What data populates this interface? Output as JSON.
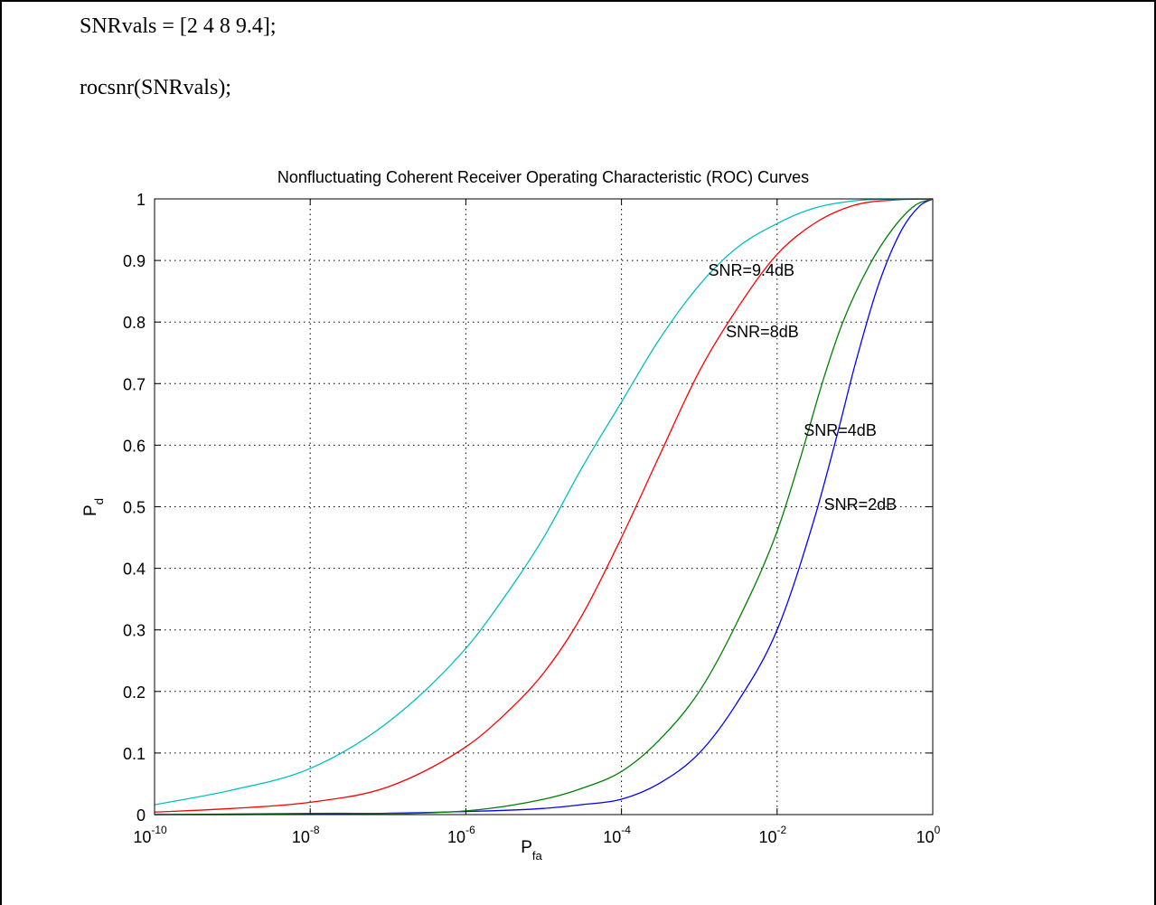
{
  "code": {
    "line1": "SNRvals = [2 4 8 9.4];",
    "line2": "rocsnr(SNRvals);"
  },
  "chart_data": {
    "type": "line",
    "title": "Nonfluctuating Coherent Receiver Operating Characteristic (ROC) Curves",
    "xlabel": {
      "main": "P",
      "sub": "fa"
    },
    "ylabel": {
      "main": "P",
      "sub": "d"
    },
    "xscale": "log",
    "xlim": [
      1e-10,
      1
    ],
    "ylim": [
      0,
      1
    ],
    "grid": true,
    "xticks": [
      {
        "value": 1e-10,
        "base": "10",
        "exp": "-10"
      },
      {
        "value": 1e-08,
        "base": "10",
        "exp": "-8"
      },
      {
        "value": 1e-06,
        "base": "10",
        "exp": "-6"
      },
      {
        "value": 0.0001,
        "base": "10",
        "exp": "-4"
      },
      {
        "value": 0.01,
        "base": "10",
        "exp": "-2"
      },
      {
        "value": 1,
        "base": "10",
        "exp": "0"
      }
    ],
    "yticks": [
      {
        "value": 0,
        "label": "0"
      },
      {
        "value": 0.1,
        "label": "0.1"
      },
      {
        "value": 0.2,
        "label": "0.2"
      },
      {
        "value": 0.3,
        "label": "0.3"
      },
      {
        "value": 0.4,
        "label": "0.4"
      },
      {
        "value": 0.5,
        "label": "0.5"
      },
      {
        "value": 0.6,
        "label": "0.6"
      },
      {
        "value": 0.7,
        "label": "0.7"
      },
      {
        "value": 0.8,
        "label": "0.8"
      },
      {
        "value": 0.9,
        "label": "0.9"
      },
      {
        "value": 1,
        "label": "1"
      }
    ],
    "series": [
      {
        "label": "SNR=2dB",
        "color": "#0000ff",
        "x": [
          1e-10,
          1e-08,
          1e-06,
          1e-05,
          3e-05,
          0.0001,
          0.0003,
          0.001,
          0.003,
          0.01,
          0.03,
          0.06,
          0.1,
          0.2,
          0.4,
          0.7,
          1
        ],
        "y": [
          0.0,
          0.0005,
          0.005,
          0.01,
          0.016,
          0.025,
          0.05,
          0.1,
          0.18,
          0.3,
          0.48,
          0.62,
          0.73,
          0.86,
          0.95,
          0.99,
          1.0
        ]
      },
      {
        "label": "SNR=4dB",
        "color": "#008000",
        "x": [
          1e-10,
          1e-08,
          1e-06,
          1e-05,
          3e-05,
          0.0001,
          0.0003,
          0.001,
          0.003,
          0.01,
          0.02,
          0.04,
          0.07,
          0.15,
          0.3,
          0.6,
          1
        ],
        "y": [
          0.0,
          0.002,
          0.006,
          0.025,
          0.042,
          0.07,
          0.12,
          0.2,
          0.31,
          0.46,
          0.58,
          0.71,
          0.8,
          0.89,
          0.95,
          0.99,
          1.0
        ]
      },
      {
        "label": "SNR=8dB",
        "color": "#ff0000",
        "x": [
          1e-10,
          1e-09,
          1e-08,
          1e-07,
          1e-06,
          3e-06,
          1e-05,
          3e-05,
          0.0001,
          0.0003,
          0.001,
          0.003,
          0.01,
          0.03,
          0.1,
          0.3,
          1
        ],
        "y": [
          0.004,
          0.01,
          0.02,
          0.045,
          0.11,
          0.16,
          0.23,
          0.32,
          0.45,
          0.58,
          0.72,
          0.82,
          0.91,
          0.96,
          0.99,
          0.998,
          1.0
        ]
      },
      {
        "label": "SNR=9.4dB",
        "color": "#00bfbf",
        "x": [
          1e-10,
          1e-09,
          1e-08,
          1e-07,
          1e-06,
          3e-06,
          1e-05,
          3e-05,
          0.0001,
          0.0003,
          0.001,
          0.003,
          0.01,
          0.03,
          0.1,
          0.3,
          1
        ],
        "y": [
          0.016,
          0.04,
          0.075,
          0.15,
          0.27,
          0.35,
          0.45,
          0.56,
          0.67,
          0.77,
          0.86,
          0.92,
          0.96,
          0.985,
          0.997,
          0.9995,
          1.0
        ]
      }
    ],
    "annotations": [
      {
        "text": "SNR=9.4dB",
        "x": 0.0013,
        "y": 0.875
      },
      {
        "text": "SNR=8dB",
        "x": 0.0022,
        "y": 0.775
      },
      {
        "text": "SNR=4dB",
        "x": 0.022,
        "y": 0.615
      },
      {
        "text": "SNR=2dB",
        "x": 0.04,
        "y": 0.495
      }
    ]
  }
}
